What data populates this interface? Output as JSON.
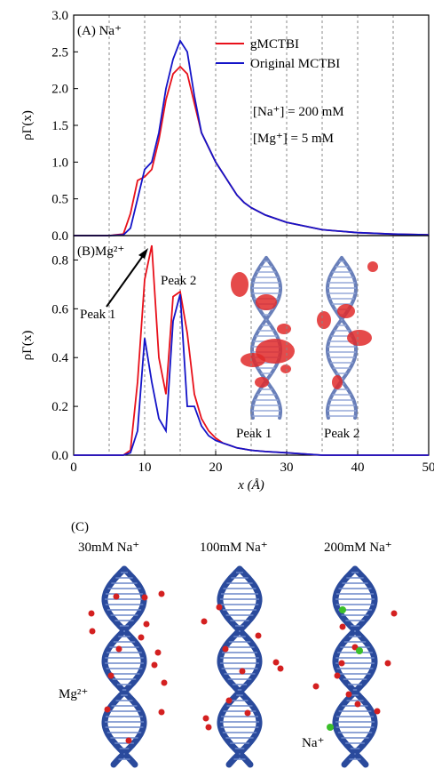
{
  "chart_data": [
    {
      "type": "line",
      "title": "(A) Na⁺",
      "y_label": "ρΓ(x)",
      "legend": "upper right",
      "x": [
        0,
        5,
        7,
        8,
        9,
        10,
        11,
        12,
        13,
        14,
        15,
        16,
        17,
        18,
        19,
        20,
        21,
        22,
        23,
        24,
        25,
        27,
        30,
        35,
        40,
        45,
        50
      ],
      "series": [
        {
          "name": "gMCTBI",
          "color": "#e8101a",
          "values": [
            0,
            0,
            0.02,
            0.3,
            0.75,
            0.8,
            0.9,
            1.3,
            1.85,
            2.2,
            2.3,
            2.2,
            1.8,
            1.4,
            1.2,
            1.0,
            0.85,
            0.7,
            0.55,
            0.45,
            0.38,
            0.28,
            0.18,
            0.08,
            0.04,
            0.02,
            0.01
          ]
        },
        {
          "name": "Original MCTBI",
          "color": "#1414c8",
          "values": [
            0,
            0,
            0.01,
            0.1,
            0.5,
            0.9,
            1.0,
            1.4,
            2.0,
            2.4,
            2.65,
            2.5,
            1.9,
            1.4,
            1.2,
            1.0,
            0.85,
            0.7,
            0.55,
            0.45,
            0.38,
            0.28,
            0.18,
            0.08,
            0.04,
            0.02,
            0.01
          ]
        }
      ],
      "xlim": [
        0,
        50
      ],
      "xgrid": [
        5,
        10,
        15,
        20,
        25,
        30,
        35,
        40,
        45
      ],
      "ylim": [
        0,
        3
      ],
      "yticks": [
        {
          "value": 0,
          "label": "0.0"
        },
        0.5,
        {
          "value": 1,
          "label": "1.0"
        },
        1.5,
        {
          "value": 2,
          "label": "2.0"
        },
        2.5,
        {
          "value": 3,
          "label": "3.0"
        }
      ],
      "annotations": [
        "[Na⁺] = 200 mM",
        "[Mg⁺] = 5 mM"
      ]
    },
    {
      "type": "line",
      "title": "(B)Mg²⁺",
      "y_label": "ρΓ(x)",
      "x_label": "x (Å)",
      "x": [
        0,
        5,
        7,
        8,
        9,
        10,
        11,
        12,
        13,
        14,
        15,
        16,
        17,
        18,
        19,
        20,
        21,
        22,
        23,
        24,
        25,
        27,
        30,
        35,
        40,
        45,
        50
      ],
      "series": [
        {
          "name": "gMCTBI",
          "color": "#e8101a",
          "values": [
            0,
            0,
            0,
            0.02,
            0.3,
            0.72,
            0.86,
            0.4,
            0.25,
            0.65,
            0.67,
            0.5,
            0.25,
            0.15,
            0.1,
            0.07,
            0.05,
            0.04,
            0.03,
            0.025,
            0.02,
            0.015,
            0.01,
            0,
            0,
            0,
            0
          ]
        },
        {
          "name": "Original MCTBI",
          "color": "#1414c8",
          "values": [
            0,
            0,
            0,
            0.01,
            0.1,
            0.48,
            0.3,
            0.15,
            0.1,
            0.55,
            0.66,
            0.2,
            0.2,
            0.12,
            0.08,
            0.06,
            0.05,
            0.04,
            0.03,
            0.025,
            0.02,
            0.015,
            0.01,
            0,
            0,
            0,
            0
          ]
        }
      ],
      "xlim": [
        0,
        50
      ],
      "xticks": [
        0,
        10,
        20,
        30,
        40,
        50
      ],
      "xgrid": [
        5,
        10,
        15,
        20,
        25,
        30,
        35,
        40,
        45
      ],
      "ylim": [
        0,
        0.9
      ],
      "yticks": [
        {
          "value": 0,
          "label": "0.0"
        },
        0.2,
        0.4,
        0.6,
        0.8
      ],
      "annotations": [
        "Peak 1",
        "Peak 2",
        "Peak 1",
        "Peak 2"
      ]
    }
  ],
  "panel_c": {
    "label": "(C)",
    "titles": [
      "30mM Na⁺",
      "100mM Na⁺",
      "200mM Na⁺"
    ],
    "ion_labels": [
      "Mg²⁺",
      "Na⁺"
    ]
  }
}
